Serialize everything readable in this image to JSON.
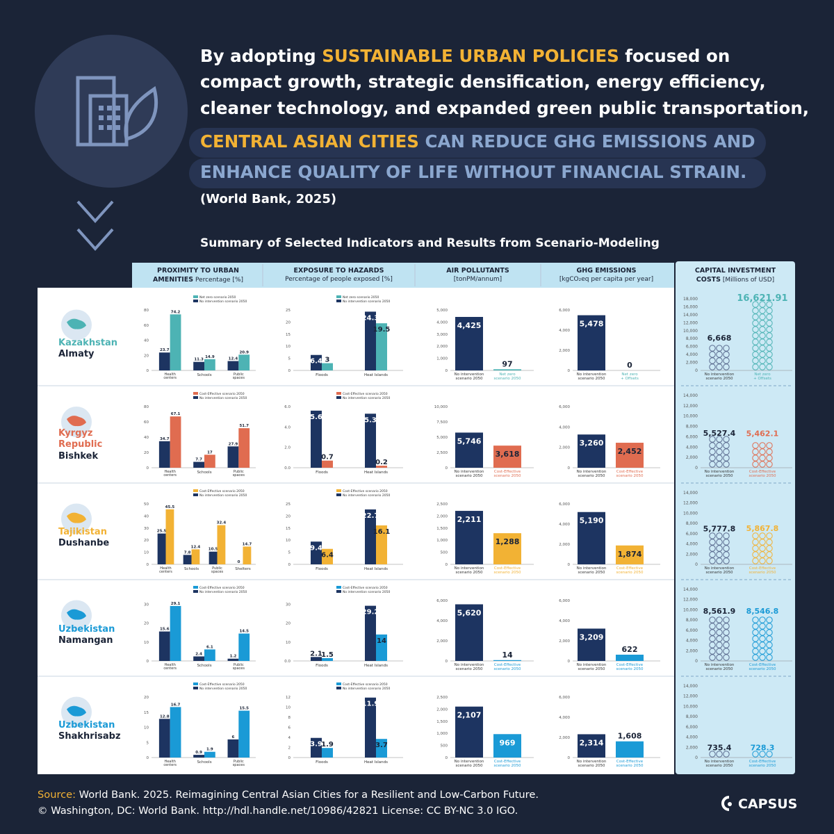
{
  "header": {
    "line1_pre": "By adopting ",
    "line1_hl": "SUSTAINABLE URBAN POLICIES",
    "line1_post": " focused on",
    "line2": "compact growth, strategic densification, energy efficiency,",
    "line3": "cleaner technology, and expanded green public transportation,",
    "line4_hl": "CENTRAL ASIAN CITIES",
    "line4_rest": " CAN REDUCE GHG EMISSIONS AND",
    "line5": "ENHANCE QUALITY OF LIFE WITHOUT FINANCIAL STRAIN.",
    "citation": "(World Bank, 2025)"
  },
  "subtitle": "Summary of Selected Indicators and Results from Scenario-Modeling",
  "columns": [
    {
      "title": "PROXIMITY TO URBAN",
      "title2": "AMENITIES",
      "unit": " Percentage [%]"
    },
    {
      "title": "EXPOSURE TO HAZARDS",
      "title2": "",
      "unit": "Percentage of people exposed [%]"
    },
    {
      "title": "AIR POLLUTANTS",
      "title2": "",
      "unit": "[tonPM/annum]"
    },
    {
      "title": "GHG EMISSIONS",
      "title2": "",
      "unit": "[kgCO₂eq per capita per year]"
    },
    {
      "title": "CAPITAL INVESTMENT",
      "title2": "COSTS",
      "unit": " [Millions of USD]"
    }
  ],
  "cities": [
    {
      "country": "Kazakhstan",
      "city": "Almaty",
      "color": "#4db3b4",
      "alt_label": "Net zero",
      "alt_label2": "Net zero + Offsets"
    },
    {
      "country": "Kyrgyz Republic",
      "city": "Bishkek",
      "color": "#e06c50",
      "alt_label": "Cost-Effective",
      "alt_label2": "Cost-Effective"
    },
    {
      "country": "Tajikistan",
      "city": "Dushanbe",
      "color": "#f2b234",
      "alt_label": "Cost-Effective",
      "alt_label2": "Cost-Effective"
    },
    {
      "country": "Uzbekistan",
      "city": "Namangan",
      "color": "#1a9ad6",
      "alt_label": "Cost-Effective",
      "alt_label2": "Cost-Effective"
    },
    {
      "country": "Uzbekistan",
      "city": "Shakhrisabz",
      "color": "#1a9ad6",
      "alt_label": "Cost-Effective",
      "alt_label2": "Cost-Effective"
    }
  ],
  "legend": {
    "no_intervention": "No intervention scenario 2050",
    "scenario": "scenario 2050",
    "no_int_short": "No intervention",
    "scen_short": "scenario 2050"
  },
  "chart_data": [
    {
      "city": "Almaty",
      "indicator": "proximity",
      "type": "bar",
      "categories": [
        "Health centers",
        "Schools",
        "Public spaces"
      ],
      "series": [
        {
          "name": "No intervention scenario 2050",
          "values": [
            23.7,
            11.3,
            12.4
          ]
        },
        {
          "name": "Net zero scenario 2050",
          "values": [
            74.2,
            14.9,
            20.9
          ]
        }
      ],
      "yticks": [
        0,
        20,
        40,
        60,
        80
      ],
      "ylim": [
        0,
        80
      ]
    },
    {
      "city": "Almaty",
      "indicator": "hazards",
      "type": "bar",
      "categories": [
        "Floods",
        "Heat Islands"
      ],
      "series": [
        {
          "name": "No intervention scenario 2050",
          "values": [
            6.4,
            24.3
          ]
        },
        {
          "name": "Net zero scenario 2050",
          "values": [
            3,
            19.5
          ]
        }
      ],
      "yticks": [
        0,
        5,
        10,
        15,
        20,
        25
      ],
      "ylim": [
        0,
        25
      ]
    },
    {
      "city": "Almaty",
      "indicator": "air",
      "type": "bar",
      "categories": [
        "No intervention scenario 2050",
        "Net zero scenario 2050"
      ],
      "values": [
        4425,
        97
      ],
      "yticks": [
        0,
        1000,
        2000,
        3000,
        4000,
        5000
      ],
      "ylim": [
        0,
        5000
      ]
    },
    {
      "city": "Almaty",
      "indicator": "ghg",
      "type": "bar",
      "categories": [
        "No intervention scenario 2050",
        "Net zero + Offsets"
      ],
      "values": [
        5478,
        0
      ],
      "yticks": [
        0,
        2000,
        4000,
        6000
      ],
      "ylim": [
        0,
        6000
      ]
    },
    {
      "city": "Almaty",
      "indicator": "capex",
      "type": "bar",
      "categories": [
        "No intervention scenario 2050",
        "Net zero + Offsets"
      ],
      "values": [
        6668,
        16621.91
      ],
      "labels": [
        "6,668",
        "16,621.91"
      ],
      "yticks": [
        0,
        2000,
        4000,
        6000,
        8000,
        10000,
        12000,
        14000,
        16000,
        18000
      ],
      "ylim": [
        0,
        18000
      ]
    },
    {
      "city": "Bishkek",
      "indicator": "proximity",
      "type": "bar",
      "categories": [
        "Health centers",
        "Schools",
        "Public spaces"
      ],
      "series": [
        {
          "name": "No intervention scenario 2050",
          "values": [
            34.7,
            7.7,
            27.9
          ]
        },
        {
          "name": "Cost-Effective scenario 2050",
          "values": [
            67.1,
            17,
            51.7
          ]
        }
      ],
      "yticks": [
        0,
        20,
        40,
        60,
        80
      ],
      "ylim": [
        0,
        80
      ]
    },
    {
      "city": "Bishkek",
      "indicator": "hazards",
      "type": "bar",
      "categories": [
        "Floods",
        "Heat Islands"
      ],
      "series": [
        {
          "name": "No intervention scenario 2050",
          "values": [
            5.6,
            5.3
          ]
        },
        {
          "name": "Cost-Effective scenario 2050",
          "values": [
            0.7,
            0.2
          ]
        }
      ],
      "yticks": [
        0,
        2,
        4,
        6
      ],
      "yticklabels": [
        "0.0",
        "2.0",
        "4.0",
        "6.0"
      ],
      "ylim": [
        0,
        6
      ]
    },
    {
      "city": "Bishkek",
      "indicator": "air",
      "type": "bar",
      "categories": [
        "No intervention scenario 2050",
        "Cost-Effective scenario 2050"
      ],
      "values": [
        5746,
        3618
      ],
      "yticks": [
        0,
        2500,
        5000,
        7500,
        10000
      ],
      "ylim": [
        0,
        10000
      ]
    },
    {
      "city": "Bishkek",
      "indicator": "ghg",
      "type": "bar",
      "categories": [
        "No intervention scenario 2050",
        "Cost-Effective scenario 2050"
      ],
      "values": [
        3260,
        2452
      ],
      "yticks": [
        0,
        2000,
        4000,
        6000
      ],
      "ylim": [
        0,
        6000
      ]
    },
    {
      "city": "Bishkek",
      "indicator": "capex",
      "type": "bar",
      "categories": [
        "No intervention scenario 2050",
        "Cost-Effective scenario 2050"
      ],
      "values": [
        5527.4,
        5462.1
      ],
      "labels": [
        "5,527.4",
        "5,462.1"
      ],
      "yticks": [
        0,
        2000,
        4000,
        6000,
        8000,
        10000,
        12000,
        14000
      ],
      "ylim": [
        0,
        14000
      ]
    },
    {
      "city": "Dushanbe",
      "indicator": "proximity",
      "type": "bar",
      "categories": [
        "Health centers",
        "Schools",
        "Public spaces",
        "Shelters"
      ],
      "series": [
        {
          "name": "No intervention scenario 2050",
          "values": [
            25.5,
            7.8,
            10.5,
            0.0
          ]
        },
        {
          "name": "Cost-Effective scenario 2050",
          "values": [
            45.5,
            12.4,
            32.4,
            14.7
          ]
        }
      ],
      "yticks": [
        0,
        10,
        20,
        30,
        40,
        50
      ],
      "ylim": [
        0,
        50
      ]
    },
    {
      "city": "Dushanbe",
      "indicator": "hazards",
      "type": "bar",
      "categories": [
        "Floods",
        "Heat Islands"
      ],
      "series": [
        {
          "name": "No intervention scenario 2050",
          "values": [
            9.4,
            22.7
          ]
        },
        {
          "name": "Cost-Effective scenario 2050",
          "values": [
            6.4,
            16.1
          ]
        }
      ],
      "yticks": [
        0,
        5,
        10,
        15,
        20,
        25
      ],
      "ylim": [
        0,
        25
      ]
    },
    {
      "city": "Dushanbe",
      "indicator": "air",
      "type": "bar",
      "categories": [
        "No intervention scenario 2050",
        "Cost-Effective scenario 2050"
      ],
      "values": [
        2211,
        1288
      ],
      "yticks": [
        0,
        500,
        1000,
        1500,
        2000,
        2500
      ],
      "ylim": [
        0,
        2500
      ]
    },
    {
      "city": "Dushanbe",
      "indicator": "ghg",
      "type": "bar",
      "categories": [
        "No intervention scenario 2050",
        "Cost-Effective scenario 2050"
      ],
      "values": [
        5190,
        1874
      ],
      "yticks": [
        0,
        2000,
        4000,
        6000
      ],
      "ylim": [
        0,
        6000
      ]
    },
    {
      "city": "Dushanbe",
      "indicator": "capex",
      "type": "bar",
      "categories": [
        "No intervention scenario 2050",
        "Cost-Effective scenario 2050"
      ],
      "values": [
        5777.8,
        5867.8
      ],
      "labels": [
        "5,777.8",
        "5,867.8"
      ],
      "yticks": [
        0,
        2000,
        4000,
        6000,
        8000,
        10000,
        12000,
        14000
      ],
      "ylim": [
        0,
        14000
      ]
    },
    {
      "city": "Namangan",
      "indicator": "proximity",
      "type": "bar",
      "categories": [
        "Health centers",
        "Schools",
        "Public spaces"
      ],
      "series": [
        {
          "name": "No intervention scenario 2050",
          "values": [
            15.6,
            2.4,
            1.2
          ]
        },
        {
          "name": "Cost-Effective scenario 2050",
          "values": [
            29.1,
            6.1,
            14.5
          ]
        }
      ],
      "yticks": [
        0,
        10,
        20,
        30
      ],
      "ylim": [
        0,
        32
      ]
    },
    {
      "city": "Namangan",
      "indicator": "hazards",
      "type": "bar",
      "categories": [
        "Floods",
        "Heat Islands"
      ],
      "series": [
        {
          "name": "No intervention scenario 2050",
          "values": [
            2.1,
            29.2
          ]
        },
        {
          "name": "Cost-Effective scenario 2050",
          "values": [
            1.5,
            14
          ]
        }
      ],
      "yticks": [
        0,
        10,
        20,
        30
      ],
      "yticklabels": [
        "0.0",
        "10",
        "20",
        "30"
      ],
      "ylim": [
        0,
        32
      ]
    },
    {
      "city": "Namangan",
      "indicator": "air",
      "type": "bar",
      "categories": [
        "No intervention scenario 2050",
        "Cost-Effective scenario 2050"
      ],
      "values": [
        5620,
        14
      ],
      "yticks": [
        0,
        2000,
        4000,
        6000
      ],
      "ylim": [
        0,
        6000
      ]
    },
    {
      "city": "Namangan",
      "indicator": "ghg",
      "type": "bar",
      "categories": [
        "No intervention scenario 2050",
        "Cost-Effective scenario 2050"
      ],
      "values": [
        3209,
        622
      ],
      "yticks": [
        0,
        2000,
        4000,
        6000
      ],
      "ylim": [
        0,
        6000
      ]
    },
    {
      "city": "Namangan",
      "indicator": "capex",
      "type": "bar",
      "categories": [
        "No intervention scenario 2050",
        "Cost-Effective scenario 2050"
      ],
      "values": [
        8561.9,
        8546.8
      ],
      "labels": [
        "8,561.9",
        "8,546.8"
      ],
      "yticks": [
        0,
        2000,
        4000,
        6000,
        8000,
        10000,
        12000,
        14000
      ],
      "ylim": [
        0,
        14000
      ]
    },
    {
      "city": "Shakhrisabz",
      "indicator": "proximity",
      "type": "bar",
      "categories": [
        "Health centers",
        "Schools",
        "Public spaces"
      ],
      "series": [
        {
          "name": "No intervention scenario 2050",
          "values": [
            12.8,
            0.9,
            6.0
          ]
        },
        {
          "name": "Cost-Effective scenario 2050",
          "values": [
            16.7,
            1.9,
            15.5
          ]
        }
      ],
      "yticks": [
        0,
        5,
        10,
        15,
        20
      ],
      "ylim": [
        0,
        20
      ]
    },
    {
      "city": "Shakhrisabz",
      "indicator": "hazards",
      "type": "bar",
      "categories": [
        "Floods",
        "Heat Islands"
      ],
      "series": [
        {
          "name": "No intervention scenario 2050",
          "values": [
            3.9,
            11.9
          ]
        },
        {
          "name": "Cost-Effective scenario 2050",
          "values": [
            1.9,
            3.7
          ]
        }
      ],
      "yticks": [
        0,
        2,
        4,
        6,
        8,
        10,
        12
      ],
      "ylim": [
        0,
        12
      ]
    },
    {
      "city": "Shakhrisabz",
      "indicator": "air",
      "type": "bar",
      "categories": [
        "No intervention scenario 2050",
        "Cost-Effective scenario 2050"
      ],
      "values": [
        2107,
        969
      ],
      "yticks": [
        0,
        500,
        1000,
        1500,
        2000,
        2500
      ],
      "ylim": [
        0,
        2500
      ]
    },
    {
      "city": "Shakhrisabz",
      "indicator": "ghg",
      "type": "bar",
      "categories": [
        "No intervention scenario 2050",
        "Cost-Effective scenario 2050"
      ],
      "values": [
        2314,
        1608
      ],
      "yticks": [
        0,
        2000,
        4000,
        6000
      ],
      "ylim": [
        0,
        6000
      ]
    },
    {
      "city": "Shakhrisabz",
      "indicator": "capex",
      "type": "bar",
      "categories": [
        "No intervention scenario 2050",
        "Cost-Effective scenario 2050"
      ],
      "values": [
        735.4,
        728.3
      ],
      "labels": [
        "735.4",
        "728.3"
      ],
      "yticks": [
        0,
        2000,
        4000,
        6000,
        8000,
        10000,
        12000,
        14000
      ],
      "ylim": [
        0,
        14000
      ]
    }
  ],
  "source": {
    "label": "Source:",
    "line1": " World Bank. 2025. Reimagining Central Asian Cities for a Resilient and Low-Carbon Future.",
    "line2": "© Washington, DC: World Bank. http://hdl.handle.net/10986/42821 License: CC BY-NC 3.0 IGO."
  },
  "logo": "CAPSUS",
  "colors": {
    "navy": "#1d3461",
    "panel": "#ffffff",
    "header_blue": "#bfe3f2",
    "capex_bg": "#cde9f5"
  }
}
